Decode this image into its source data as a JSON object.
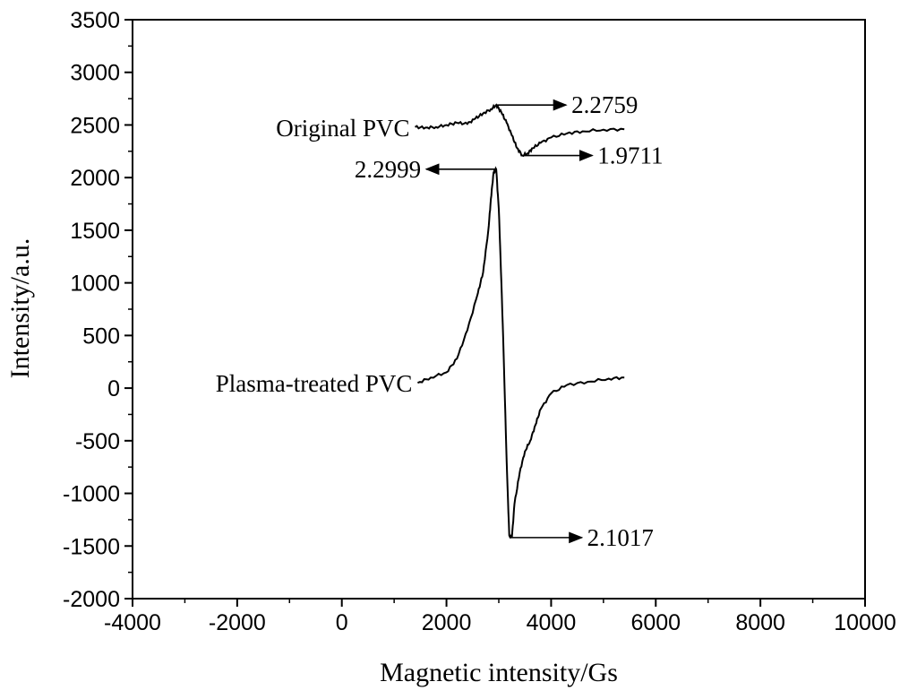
{
  "chart_data": {
    "type": "line",
    "title": "",
    "xlabel": "Magnetic intensity/Gs",
    "ylabel": "Intensity/a.u.",
    "xlim": [
      -4000,
      10000
    ],
    "ylim": [
      -2000,
      3500
    ],
    "xticks": [
      -4000,
      -2000,
      0,
      2000,
      4000,
      6000,
      8000,
      10000
    ],
    "yticks": [
      -2000,
      -1500,
      -1000,
      -500,
      0,
      500,
      1000,
      1500,
      2000,
      2500,
      3000,
      3500
    ],
    "xtick_labels": [
      "-4000",
      "-2000",
      "0",
      "2000",
      "4000",
      "6000",
      "8000",
      "10000"
    ],
    "ytick_labels": [
      "-2000",
      "-1500",
      "-1000",
      "-500",
      "0",
      "500",
      "1000",
      "1500",
      "2000",
      "2500",
      "3000",
      "3500"
    ],
    "grid": false,
    "series": [
      {
        "name": "Original PVC",
        "label": "Original PVC",
        "x": [
          1400,
          1600,
          1800,
          2000,
          2200,
          2400,
          2550,
          2700,
          2850,
          2950,
          3050,
          3150,
          3250,
          3350,
          3450,
          3550,
          3650,
          3800,
          4000,
          4300,
          4600,
          5000,
          5400
        ],
        "y": [
          2480,
          2475,
          2480,
          2500,
          2520,
          2510,
          2560,
          2610,
          2650,
          2690,
          2620,
          2520,
          2400,
          2280,
          2210,
          2230,
          2280,
          2330,
          2380,
          2420,
          2440,
          2455,
          2460
        ]
      },
      {
        "name": "Plasma-treated PVC",
        "label": "Plasma-treated PVC",
        "x": [
          1450,
          1700,
          2000,
          2200,
          2400,
          2600,
          2700,
          2800,
          2850,
          2900,
          2950,
          3000,
          3050,
          3100,
          3150,
          3200,
          3250,
          3300,
          3400,
          3500,
          3600,
          3700,
          3800,
          4000,
          4300,
          4700,
          5100,
          5400
        ],
        "y": [
          50,
          100,
          150,
          280,
          550,
          900,
          1100,
          1500,
          1800,
          2050,
          2080,
          1700,
          1000,
          200,
          -700,
          -1400,
          -1420,
          -1100,
          -800,
          -600,
          -500,
          -350,
          -200,
          -50,
          30,
          60,
          90,
          100
        ]
      }
    ],
    "annotations": [
      {
        "text": "2.2759",
        "x": 2950,
        "y": 2690,
        "direction": "right"
      },
      {
        "text": "1.9711",
        "x": 3450,
        "y": 2210,
        "direction": "right"
      },
      {
        "text": "2.2999",
        "x": 2950,
        "y": 2080,
        "direction": "left"
      },
      {
        "text": "2.1017",
        "x": 3250,
        "y": -1420,
        "direction": "right"
      }
    ]
  }
}
